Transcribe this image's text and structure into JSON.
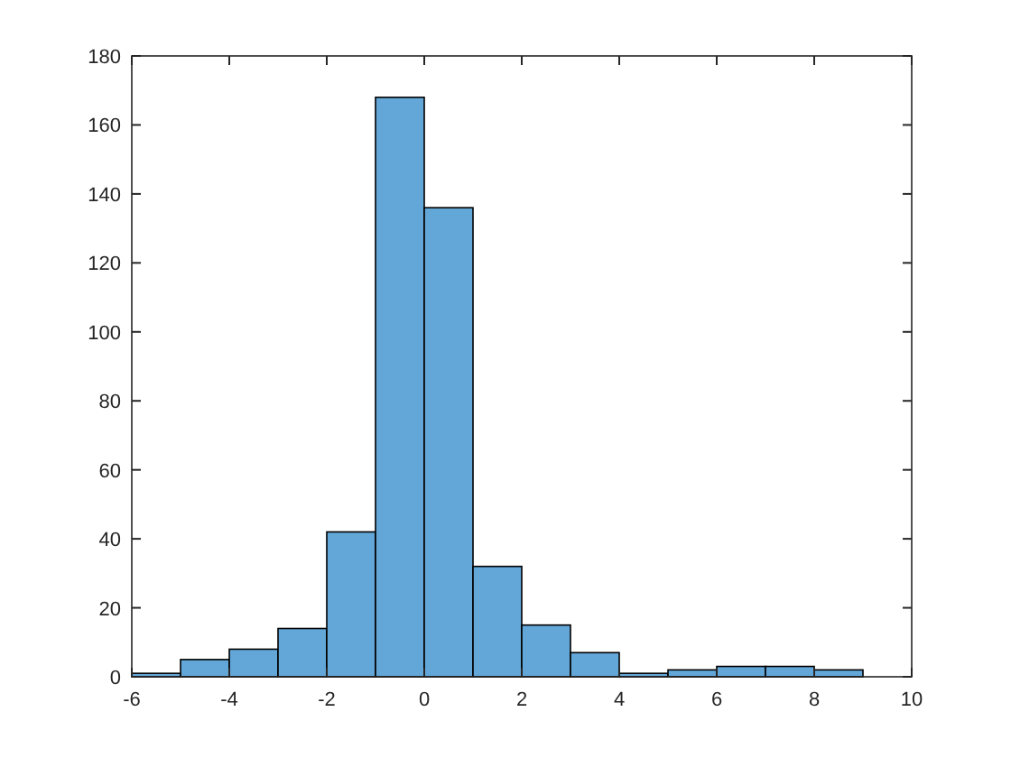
{
  "chart_data": {
    "type": "histogram",
    "bins": [
      -6,
      -5,
      -4,
      -3,
      -2,
      -1,
      0,
      1,
      2,
      3,
      4,
      5,
      6,
      7,
      8,
      9
    ],
    "values": [
      1,
      5,
      8,
      14,
      42,
      168,
      136,
      32,
      15,
      7,
      1,
      2,
      3,
      3,
      2
    ],
    "color": "#63a7d8",
    "xlim": [
      -6,
      10
    ],
    "xticks": [
      -6,
      -4,
      -2,
      0,
      2,
      4,
      6,
      8,
      10
    ],
    "ylim": [
      0,
      180
    ],
    "yticks": [
      0,
      20,
      40,
      60,
      80,
      100,
      120,
      140,
      160,
      180
    ],
    "grid": false
  }
}
